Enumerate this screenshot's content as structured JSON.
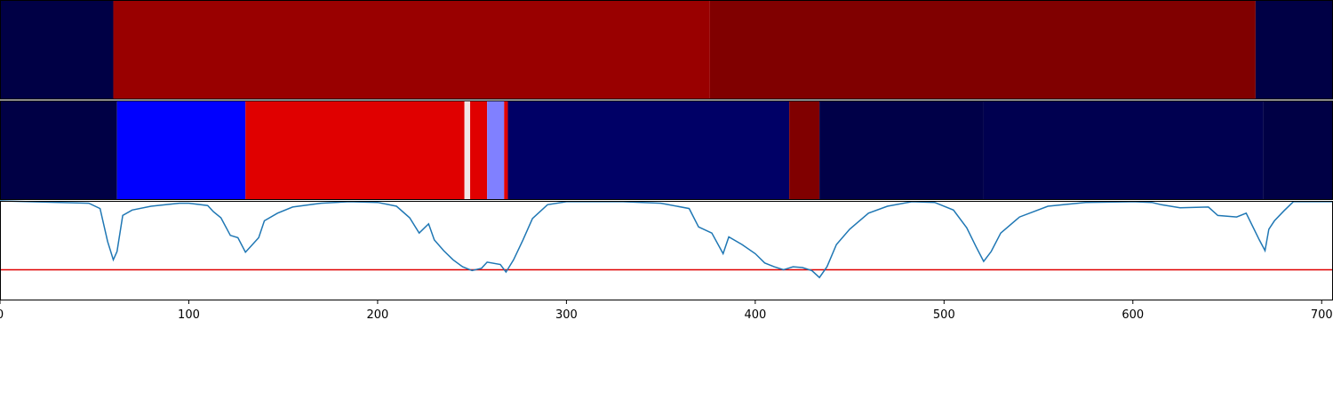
{
  "chart_data": [
    {
      "type": "segments",
      "xlim": [
        0,
        706
      ],
      "segments": [
        {
          "start": 0,
          "end": 60,
          "color": "#000045"
        },
        {
          "start": 60,
          "end": 376,
          "color": "#990000"
        },
        {
          "start": 376,
          "end": 665,
          "color": "#800000"
        },
        {
          "start": 665,
          "end": 706,
          "color": "#000045"
        }
      ]
    },
    {
      "type": "segments",
      "xlim": [
        0,
        706
      ],
      "segments": [
        {
          "start": 0,
          "end": 62,
          "color": "#000045"
        },
        {
          "start": 62,
          "end": 130,
          "color": "#0000ff"
        },
        {
          "start": 130,
          "end": 246,
          "color": "#e00000"
        },
        {
          "start": 246,
          "end": 249,
          "color": "#f2e6e6"
        },
        {
          "start": 249,
          "end": 258,
          "color": "#e00000"
        },
        {
          "start": 258,
          "end": 267,
          "color": "#8080ff"
        },
        {
          "start": 267,
          "end": 269,
          "color": "#e00000"
        },
        {
          "start": 269,
          "end": 418,
          "color": "#000066"
        },
        {
          "start": 418,
          "end": 434,
          "color": "#800000"
        },
        {
          "start": 434,
          "end": 521,
          "color": "#000048"
        },
        {
          "start": 521,
          "end": 669,
          "color": "#000050"
        },
        {
          "start": 669,
          "end": 706,
          "color": "#000045"
        }
      ]
    },
    {
      "type": "line",
      "xlim": [
        0,
        706
      ],
      "ylim": [
        -0.3,
        1.0
      ],
      "xticks": [
        0,
        100,
        200,
        300,
        400,
        500,
        600,
        700
      ],
      "color": "#1f77b4",
      "threshold": 0.1,
      "threshold_color": "#e00000",
      "x": [
        0,
        47,
        53,
        57,
        60,
        62,
        65,
        70,
        80,
        95,
        100,
        110,
        113,
        117,
        122,
        126,
        130,
        133,
        137,
        140,
        147,
        155,
        170,
        185,
        200,
        210,
        217,
        222,
        227,
        230,
        235,
        240,
        245,
        250,
        255,
        258,
        265,
        268,
        272,
        277,
        282,
        290,
        300,
        330,
        350,
        365,
        370,
        377,
        383,
        386,
        393,
        400,
        405,
        410,
        415,
        420,
        425,
        430,
        434,
        438,
        443,
        450,
        460,
        470,
        483,
        495,
        505,
        512,
        517,
        521,
        525,
        530,
        540,
        555,
        575,
        600,
        610,
        615,
        625,
        640,
        645,
        655,
        660,
        667,
        670,
        672,
        675,
        680,
        685,
        706
      ],
      "values": [
        1.0,
        0.97,
        0.9,
        0.47,
        0.23,
        0.34,
        0.81,
        0.88,
        0.93,
        0.97,
        0.97,
        0.94,
        0.86,
        0.78,
        0.55,
        0.52,
        0.33,
        0.41,
        0.52,
        0.74,
        0.84,
        0.92,
        0.97,
        0.99,
        0.98,
        0.93,
        0.78,
        0.58,
        0.7,
        0.49,
        0.35,
        0.23,
        0.14,
        0.09,
        0.12,
        0.2,
        0.17,
        0.07,
        0.23,
        0.49,
        0.77,
        0.95,
        0.99,
        0.99,
        0.97,
        0.9,
        0.66,
        0.58,
        0.31,
        0.53,
        0.43,
        0.31,
        0.19,
        0.14,
        0.1,
        0.14,
        0.13,
        0.09,
        0.0,
        0.14,
        0.43,
        0.63,
        0.84,
        0.93,
        0.99,
        0.98,
        0.88,
        0.65,
        0.4,
        0.21,
        0.34,
        0.58,
        0.79,
        0.93,
        0.98,
        0.99,
        0.98,
        0.95,
        0.91,
        0.92,
        0.81,
        0.79,
        0.84,
        0.49,
        0.35,
        0.63,
        0.74,
        0.87,
        0.99,
        0.99
      ]
    }
  ]
}
